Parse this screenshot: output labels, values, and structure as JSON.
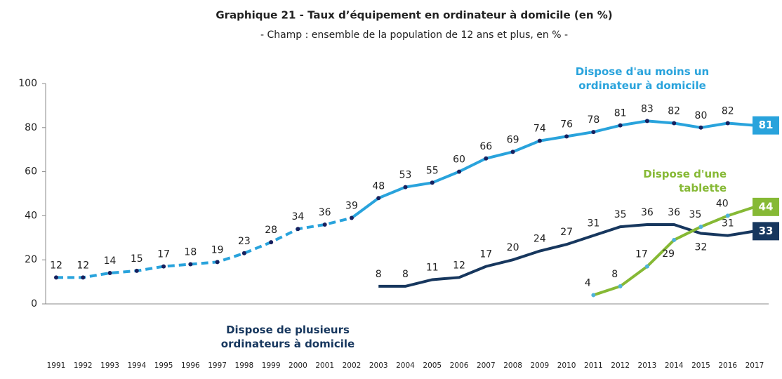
{
  "chart_data": {
    "type": "line",
    "title": "Graphique 21 - Taux d’équipement en ordinateur à domicile (en %)",
    "subtitle": "- Champ : ensemble de la population de 12 ans et plus, en % -",
    "categories": [
      "1991",
      "1992",
      "1993",
      "1994",
      "1995",
      "1996",
      "1997",
      "1998",
      "1999",
      "2000",
      "2001",
      "2002",
      "2003",
      "2004",
      "2005",
      "2006",
      "2007",
      "2008",
      "2009",
      "2010",
      "2011",
      "2012",
      "2013",
      "2014",
      "2015",
      "2016",
      "2017"
    ],
    "series": [
      {
        "name": "Dispose d'au moins un ordinateur à domicile",
        "color": "#29a3dc",
        "marker_color": "#17205e",
        "dashed_until": "2002",
        "values": [
          12,
          12,
          14,
          15,
          17,
          18,
          19,
          23,
          28,
          34,
          36,
          39,
          48,
          53,
          55,
          60,
          66,
          69,
          74,
          76,
          78,
          81,
          83,
          82,
          80,
          82,
          81
        ]
      },
      {
        "name": "Dispose de plusieurs ordinateurs à domicile",
        "color": "#17375e",
        "values": [
          null,
          null,
          null,
          null,
          null,
          null,
          null,
          null,
          null,
          null,
          null,
          null,
          8,
          8,
          11,
          12,
          17,
          20,
          24,
          27,
          31,
          35,
          36,
          36,
          32,
          31,
          33
        ]
      },
      {
        "name": "Dispose d'une tablette",
        "color": "#86b935",
        "marker_color": "#4fb3d9",
        "values": [
          null,
          null,
          null,
          null,
          null,
          null,
          null,
          null,
          null,
          null,
          null,
          null,
          null,
          null,
          null,
          null,
          null,
          null,
          null,
          null,
          4,
          8,
          17,
          29,
          35,
          40,
          44
        ]
      }
    ],
    "ylim": [
      0,
      100
    ],
    "yticks": [
      0,
      20,
      40,
      60,
      80,
      100
    ]
  }
}
